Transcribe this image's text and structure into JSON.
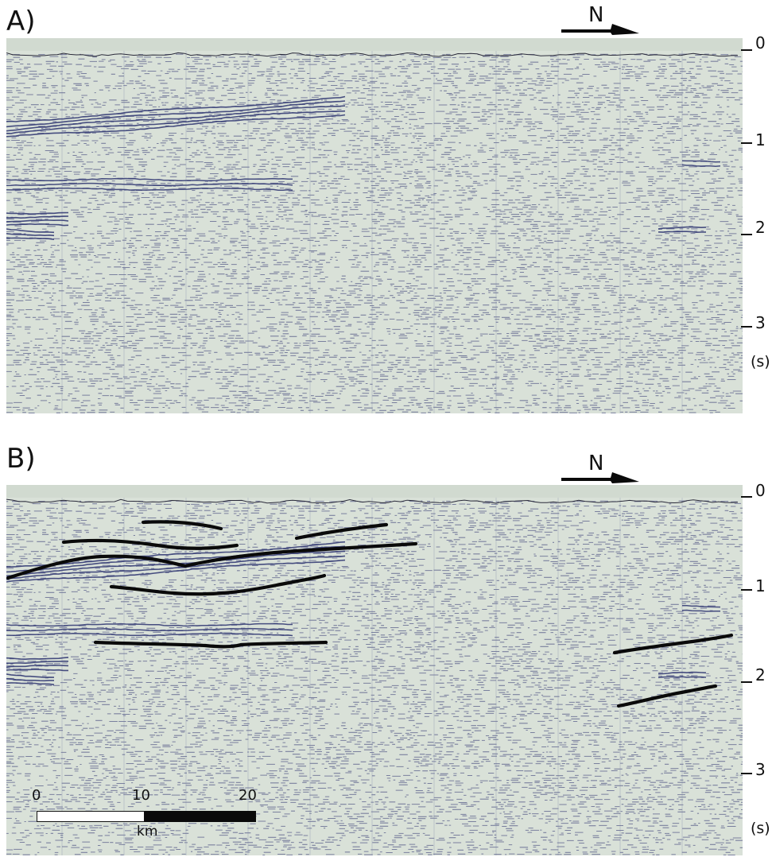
{
  "panels": [
    {
      "label": "A)",
      "north_label": "N",
      "twt_ticks": [
        "0",
        "1",
        "2",
        "3"
      ],
      "unit": "(s)",
      "interpreted_horizons": false
    },
    {
      "label": "B)",
      "north_label": "N",
      "twt_ticks": [
        "0",
        "1",
        "2",
        "3"
      ],
      "unit": "(s)",
      "interpreted_horizons": true
    }
  ],
  "scale_bar": {
    "ticks": [
      "0",
      "10",
      "20"
    ],
    "unit": "km"
  },
  "colors": {
    "seismic_background": "#d9e1d8",
    "seismic_trace": "#2b3270",
    "horizon_line": "#0a0a0a"
  }
}
